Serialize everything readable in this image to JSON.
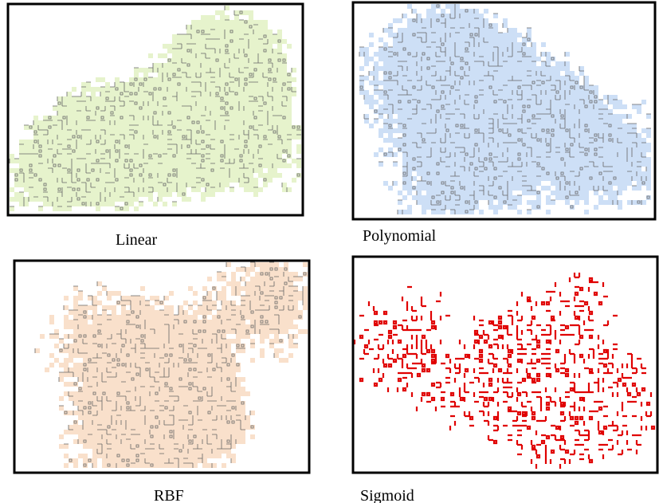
{
  "panels": [
    {
      "label": "Linear"
    },
    {
      "label": "Polynomial"
    },
    {
      "label": "RBF"
    },
    {
      "label": "Sigmoid"
    }
  ]
}
